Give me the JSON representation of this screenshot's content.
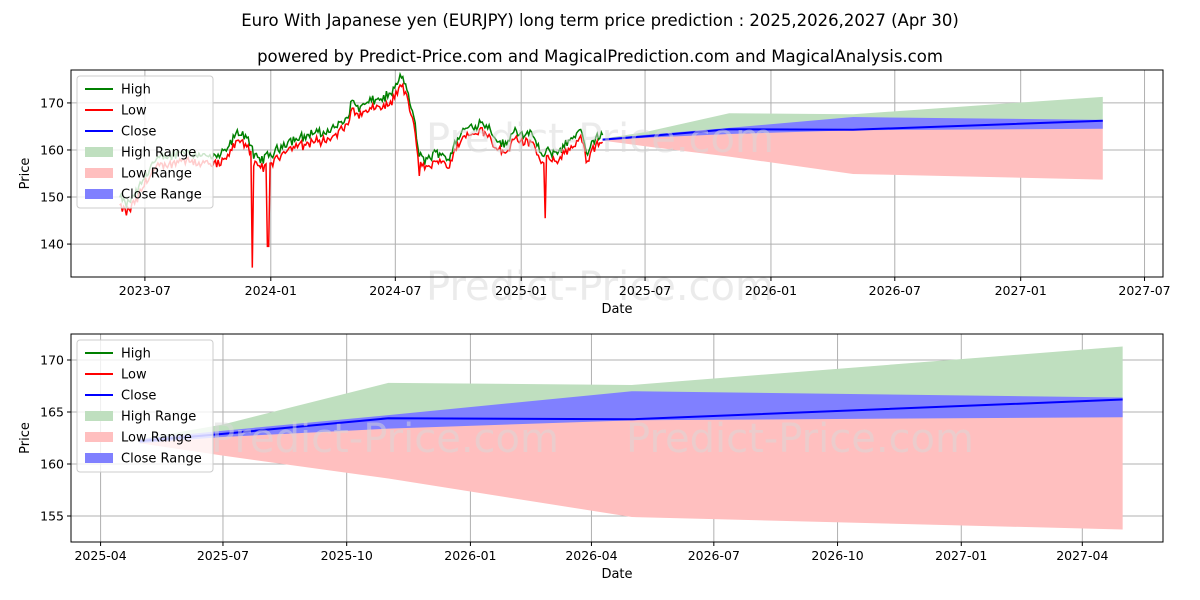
{
  "title_line1": "Euro With Japanese yen (EURJPY) long term price prediction : 2025,2026,2027 (Apr 30)",
  "title_line2": "powered by Predict-Price.com and MagicalPrediction.com and MagicalAnalysis.com",
  "watermark": "Predict-Price.com",
  "colors": {
    "high": "#008000",
    "low": "#ff0000",
    "close": "#0000ff",
    "high_range": "#bfdfbf",
    "low_range": "#ffbfbf",
    "close_range": "#8080ff",
    "grid": "#b0b0b0"
  },
  "chart_data": [
    {
      "type": "line",
      "panel": "top",
      "xlabel": "Date",
      "ylabel": "Price",
      "x_ticks": [
        "2023-07",
        "2024-01",
        "2024-07",
        "2025-01",
        "2025-07",
        "2026-01",
        "2026-07",
        "2027-01",
        "2027-07"
      ],
      "y_ticks": [
        140,
        150,
        160,
        170
      ],
      "xlim": [
        "2023-03-15",
        "2027-07-28"
      ],
      "ylim": [
        133,
        177
      ],
      "grid": true,
      "legend_position": "top-left",
      "legend": [
        "High",
        "Low",
        "Close",
        "High Range",
        "Low Range",
        "Close Range"
      ],
      "history_anchors": {
        "dates": [
          "2023-05-25",
          "2023-06-05",
          "2023-06-20",
          "2023-07-10",
          "2023-07-25",
          "2023-08-10",
          "2023-08-25",
          "2023-09-10",
          "2023-09-25",
          "2023-10-10",
          "2023-10-25",
          "2023-11-05",
          "2023-11-15",
          "2023-11-28",
          "2023-12-07",
          "2023-12-15",
          "2023-12-22",
          "2024-01-05",
          "2024-01-20",
          "2024-02-05",
          "2024-02-20",
          "2024-03-05",
          "2024-03-15",
          "2024-03-28",
          "2024-04-10",
          "2024-04-20",
          "2024-04-29",
          "2024-05-10",
          "2024-05-25",
          "2024-06-10",
          "2024-06-25",
          "2024-07-05",
          "2024-07-11",
          "2024-07-20",
          "2024-07-28",
          "2024-08-05",
          "2024-08-12",
          "2024-08-25",
          "2024-09-05",
          "2024-09-16",
          "2024-09-28",
          "2024-10-10",
          "2024-10-25",
          "2024-11-05",
          "2024-11-15",
          "2024-11-28",
          "2024-12-10",
          "2024-12-20",
          "2025-01-05",
          "2025-01-20",
          "2025-02-01",
          "2025-02-10",
          "2025-02-20",
          "2025-03-05",
          "2025-03-18",
          "2025-03-31",
          "2025-04-07",
          "2025-04-15",
          "2025-04-22",
          "2025-04-30"
        ],
        "close": [
          149,
          147.5,
          150.5,
          156,
          157.5,
          158,
          159,
          158.5,
          158,
          157.5,
          158.5,
          161,
          163,
          162,
          158,
          157,
          157.5,
          158.5,
          160.5,
          161.5,
          162,
          163,
          162.5,
          163.5,
          164.5,
          165.5,
          169.5,
          168,
          169.5,
          170,
          171,
          173.5,
          175,
          171,
          166,
          158,
          157,
          158,
          159,
          157,
          161,
          163.5,
          164.5,
          165,
          164,
          161,
          160,
          163.5,
          162.5,
          162,
          157.5,
          159,
          158.5,
          160,
          162,
          163.5,
          157,
          161,
          162,
          162.5
        ],
        "anomalies": [
          {
            "date": "2023-12-05",
            "low": 135
          },
          {
            "date": "2023-12-28",
            "low": 139.5
          },
          {
            "date": "2025-02-05",
            "low": 145.5
          },
          {
            "date": "2024-08-05",
            "low": 154.5
          }
        ]
      },
      "forecast": {
        "dates": [
          "2025-04-30",
          "2025-07-01",
          "2025-11-01",
          "2026-05-01",
          "2027-05-01"
        ],
        "high": [
          162.4,
          163.8,
          167.8,
          167.6,
          171.3
        ],
        "low": [
          162.0,
          160.8,
          158.6,
          154.9,
          153.7
        ],
        "close": [
          162.2,
          162.9,
          164.4,
          164.3,
          166.2
        ],
        "close_upper": [
          162.4,
          163.2,
          164.7,
          167.0,
          166.4
        ],
        "close_lower": [
          162.0,
          162.6,
          163.4,
          164.2,
          164.5
        ]
      }
    },
    {
      "type": "line",
      "panel": "bottom",
      "xlabel": "Date",
      "ylabel": "Price",
      "x_ticks": [
        "2025-04",
        "2025-07",
        "2025-10",
        "2026-01",
        "2026-04",
        "2026-07",
        "2026-10",
        "2027-01",
        "2027-04"
      ],
      "y_ticks": [
        155,
        160,
        165,
        170
      ],
      "xlim": [
        "2025-03-10",
        "2027-05-31"
      ],
      "ylim": [
        152.5,
        172.5
      ],
      "grid": true,
      "legend_position": "top-left",
      "legend": [
        "High",
        "Low",
        "Close",
        "High Range",
        "Low Range",
        "Close Range"
      ]
    }
  ]
}
